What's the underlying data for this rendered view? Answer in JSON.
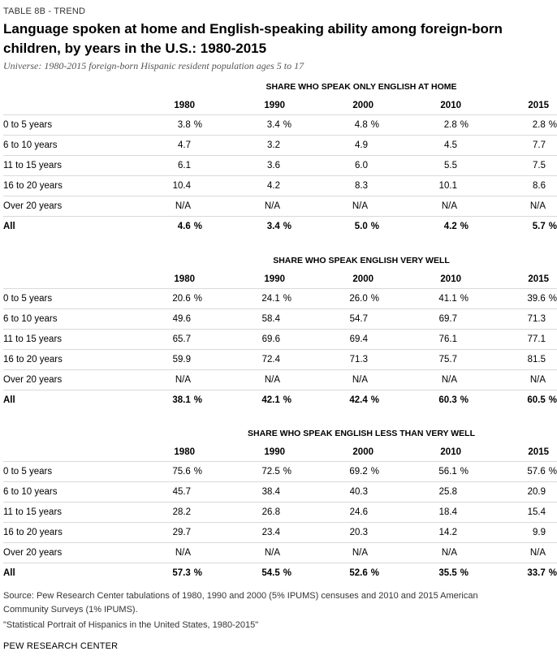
{
  "table_tag": "TABLE 8B - TREND",
  "title": "Language spoken at home and English-speaking ability among foreign-born children, by years in the U.S.: 1980-2015",
  "universe": "Universe: 1980-2015 foreign-born Hispanic resident population ages 5 to 17",
  "years": [
    "1980",
    "1990",
    "2000",
    "2010",
    "2015"
  ],
  "sections": [
    {
      "heading": "SHARE WHO SPEAK ONLY ENGLISH AT HOME",
      "rows": [
        {
          "label": "0 to 5 years",
          "values": [
            "3.8",
            "3.4",
            "4.8",
            "2.8",
            "2.8"
          ],
          "pct": true
        },
        {
          "label": "6 to 10 years",
          "values": [
            "4.7",
            "3.2",
            "4.9",
            "4.5",
            "7.7"
          ],
          "pct": false
        },
        {
          "label": "11 to 15 years",
          "values": [
            "6.1",
            "3.6",
            "6.0",
            "5.5",
            "7.5"
          ],
          "pct": false
        },
        {
          "label": "16 to 20 years",
          "values": [
            "10.4",
            "4.2",
            "8.3",
            "10.1",
            "8.6"
          ],
          "pct": false
        },
        {
          "label": "Over 20 years",
          "values": [
            "N/A",
            "N/A",
            "N/A",
            "N/A",
            "N/A"
          ],
          "pct": false
        },
        {
          "label": "All",
          "values": [
            "4.6",
            "3.4",
            "5.0",
            "4.2",
            "5.7"
          ],
          "pct": true,
          "total": true
        }
      ]
    },
    {
      "heading": "SHARE WHO SPEAK ENGLISH VERY WELL",
      "rows": [
        {
          "label": "0 to 5 years",
          "values": [
            "20.6",
            "24.1",
            "26.0",
            "41.1",
            "39.6"
          ],
          "pct": true
        },
        {
          "label": "6 to 10 years",
          "values": [
            "49.6",
            "58.4",
            "54.7",
            "69.7",
            "71.3"
          ],
          "pct": false
        },
        {
          "label": "11 to 15 years",
          "values": [
            "65.7",
            "69.6",
            "69.4",
            "76.1",
            "77.1"
          ],
          "pct": false
        },
        {
          "label": "16 to 20 years",
          "values": [
            "59.9",
            "72.4",
            "71.3",
            "75.7",
            "81.5"
          ],
          "pct": false
        },
        {
          "label": "Over 20 years",
          "values": [
            "N/A",
            "N/A",
            "N/A",
            "N/A",
            "N/A"
          ],
          "pct": false
        },
        {
          "label": "All",
          "values": [
            "38.1",
            "42.1",
            "42.4",
            "60.3",
            "60.5"
          ],
          "pct": true,
          "total": true
        }
      ]
    },
    {
      "heading": "SHARE WHO SPEAK ENGLISH LESS THAN VERY WELL",
      "rows": [
        {
          "label": "0 to 5 years",
          "values": [
            "75.6",
            "72.5",
            "69.2",
            "56.1",
            "57.6"
          ],
          "pct": true
        },
        {
          "label": "6 to 10 years",
          "values": [
            "45.7",
            "38.4",
            "40.3",
            "25.8",
            "20.9"
          ],
          "pct": false
        },
        {
          "label": "11 to 15 years",
          "values": [
            "28.2",
            "26.8",
            "24.6",
            "18.4",
            "15.4"
          ],
          "pct": false
        },
        {
          "label": "16 to 20 years",
          "values": [
            "29.7",
            "23.4",
            "20.3",
            "14.2",
            "9.9"
          ],
          "pct": false
        },
        {
          "label": "Over 20 years",
          "values": [
            "N/A",
            "N/A",
            "N/A",
            "N/A",
            "N/A"
          ],
          "pct": false
        },
        {
          "label": "All",
          "values": [
            "57.3",
            "54.5",
            "52.6",
            "35.5",
            "33.7"
          ],
          "pct": true,
          "total": true
        }
      ]
    }
  ],
  "percent_sign": "%",
  "source": "Source: Pew Research Center tabulations of 1980, 1990 and 2000 (5% IPUMS) censuses and 2010 and 2015 American Community Surveys (1% IPUMS).",
  "portrait": "\"Statistical Portrait of Hispanics in the United States, 1980-2015\"",
  "brand": "PEW RESEARCH CENTER"
}
